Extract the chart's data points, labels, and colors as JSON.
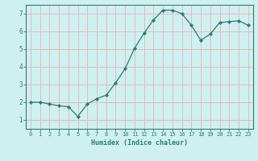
{
  "x": [
    0,
    1,
    2,
    3,
    4,
    5,
    6,
    7,
    8,
    9,
    10,
    11,
    12,
    13,
    14,
    15,
    16,
    17,
    18,
    19,
    20,
    21,
    22,
    23
  ],
  "y": [
    2.0,
    2.0,
    1.9,
    1.8,
    1.75,
    1.2,
    1.9,
    2.2,
    2.4,
    3.1,
    3.9,
    5.05,
    5.9,
    6.65,
    7.2,
    7.2,
    7.0,
    6.35,
    5.5,
    5.85,
    6.5,
    6.55,
    6.6,
    6.35
  ],
  "line_color": "#2d7d6e",
  "marker": "D",
  "marker_size": 2.2,
  "bg_color": "#cff0f0",
  "grid_color": "#e8b8b8",
  "axis_color": "#2d7d6e",
  "tick_color": "#2d7d6e",
  "xlabel": "Humidex (Indice chaleur)",
  "xlim": [
    -0.5,
    23.5
  ],
  "ylim": [
    0.5,
    7.5
  ],
  "yticks": [
    1,
    2,
    3,
    4,
    5,
    6,
    7
  ],
  "xticks": [
    0,
    1,
    2,
    3,
    4,
    5,
    6,
    7,
    8,
    9,
    10,
    11,
    12,
    13,
    14,
    15,
    16,
    17,
    18,
    19,
    20,
    21,
    22,
    23
  ],
  "font_family": "monospace",
  "tick_fontsize": 5.0,
  "xlabel_fontsize": 6.0
}
